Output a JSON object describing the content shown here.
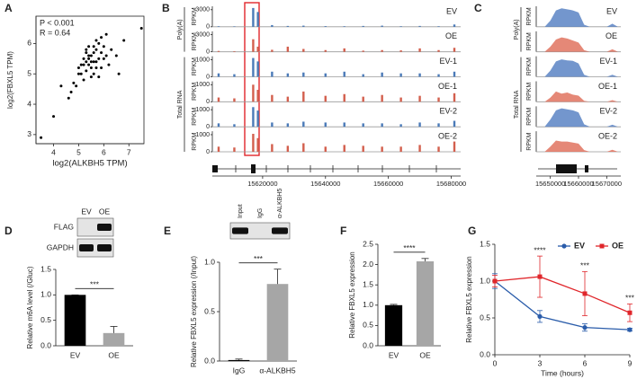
{
  "chart_data": [
    {
      "type": "scatter",
      "panel": "A",
      "annotations": [
        "P < 0.001",
        "R = 0.64"
      ],
      "x_label": "log2(ALKBH5 TPM)",
      "y_label": "log2(FBXL5 TPM)",
      "color": "#000000",
      "x": [
        5.2,
        5.4,
        5.5,
        5.6,
        5.3,
        5.7,
        5.8,
        5.1,
        5.9,
        6.0,
        5.5,
        5.6,
        5.4,
        5.2,
        5.0,
        4.9,
        5.3,
        5.7,
        6.1,
        6.2,
        5.8,
        5.6,
        5.5,
        4.8,
        4.7,
        5.9,
        6.3,
        6.5,
        5.4,
        5.1,
        5.6,
        5.7,
        5.3,
        5.2,
        5.8,
        6.0,
        4.6,
        5.5,
        5.9,
        6.8,
        7.5,
        3.5,
        4.0,
        4.3,
        6.6,
        5.0,
        5.4,
        5.7,
        5.3,
        6.1
      ],
      "y": [
        5.3,
        5.5,
        5.6,
        5.4,
        5.1,
        5.8,
        5.5,
        5.0,
        5.7,
        5.9,
        5.2,
        5.7,
        5.6,
        4.8,
        5.0,
        4.6,
        5.4,
        5.2,
        5.6,
        5.3,
        6.0,
        5.9,
        5.4,
        4.7,
        4.4,
        5.2,
        5.8,
        5.6,
        5.9,
        5.3,
        5.0,
        6.1,
        5.7,
        5.5,
        4.9,
        5.5,
        4.2,
        4.9,
        6.2,
        6.1,
        6.5,
        2.9,
        3.6,
        4.6,
        5.0,
        5.2,
        5.3,
        5.4,
        5.8,
        6.3
      ],
      "xlim": [
        3.3,
        7.6
      ],
      "ylim": [
        2.7,
        6.9
      ],
      "xticks": [
        4,
        5,
        6,
        7
      ],
      "yticks": [
        3,
        4,
        5,
        6
      ]
    },
    {
      "type": "peaks",
      "panel": "B",
      "group_labels": [
        "Poly(A)",
        "Total RNA"
      ],
      "y_label": "RPKM",
      "x": [
        15606000,
        15611000,
        15617000,
        15618500,
        15623000,
        15628000,
        15633000,
        15640000,
        15646000,
        15652000,
        15658000,
        15664000,
        15670000,
        15676000,
        15681000
      ],
      "xlim": [
        15604000,
        15683000
      ],
      "xticks": [
        15620000,
        15640000,
        15660000,
        15680000
      ],
      "series": [
        {
          "name": "EV",
          "color": "#4a7ab8",
          "ylim": [
            0,
            3600
          ],
          "yticks": [
            0,
            3000
          ],
          "values": [
            100,
            80,
            3300,
            2600,
            300,
            150,
            200,
            120,
            100,
            150,
            200,
            100,
            150,
            100,
            400
          ]
        },
        {
          "name": "OE",
          "color": "#d35f4d",
          "ylim": [
            0,
            3600
          ],
          "yticks": [
            0,
            3000
          ],
          "values": [
            150,
            100,
            2200,
            900,
            350,
            900,
            500,
            300,
            600,
            200,
            300,
            250,
            600,
            300,
            700
          ]
        },
        {
          "name": "EV-1",
          "color": "#4a7ab8",
          "ylim": [
            0,
            1200
          ],
          "yticks": [
            0,
            1000
          ],
          "values": [
            200,
            150,
            1100,
            900,
            300,
            200,
            250,
            200,
            300,
            150,
            250,
            200,
            200,
            150,
            300
          ]
        },
        {
          "name": "OE-1",
          "color": "#d35f4d",
          "ylim": [
            0,
            1200
          ],
          "yticks": [
            0,
            1000
          ],
          "values": [
            250,
            200,
            1000,
            700,
            400,
            300,
            600,
            350,
            450,
            300,
            400,
            250,
            350,
            250,
            500
          ]
        },
        {
          "name": "EV-2",
          "color": "#4a7ab8",
          "ylim": [
            0,
            1200
          ],
          "yticks": [
            0,
            1000
          ],
          "values": [
            200,
            150,
            1150,
            950,
            250,
            200,
            300,
            250,
            250,
            200,
            200,
            150,
            250,
            200,
            350
          ]
        },
        {
          "name": "OE-2",
          "color": "#d35f4d",
          "ylim": [
            0,
            1200
          ],
          "yticks": [
            0,
            1000
          ],
          "values": [
            300,
            250,
            1050,
            800,
            450,
            350,
            500,
            300,
            400,
            350,
            300,
            300,
            400,
            300,
            600
          ]
        }
      ]
    },
    {
      "type": "coverage",
      "panel": "C",
      "group_labels": [
        "Poly(A)",
        "Total RNA"
      ],
      "y_label": "RPKM",
      "x": [
        15646000,
        15648000,
        15650000,
        15652000,
        15654000,
        15656000,
        15658000,
        15660000,
        15662000,
        15664000,
        15666000,
        15668000,
        15670000,
        15672000,
        15674000
      ],
      "xlim": [
        15645000,
        15675000
      ],
      "xticks": [
        15650000,
        15660000,
        15670000
      ],
      "series": [
        {
          "name": "EV",
          "color": "#5b84c4",
          "ylim": [
            0,
            100
          ],
          "values": [
            0,
            0,
            30,
            80,
            90,
            85,
            80,
            70,
            10,
            0,
            0,
            0,
            0,
            15,
            0
          ]
        },
        {
          "name": "OE",
          "color": "#e0735f",
          "ylim": [
            0,
            100
          ],
          "values": [
            0,
            0,
            25,
            60,
            70,
            65,
            55,
            45,
            8,
            0,
            0,
            0,
            0,
            12,
            0
          ]
        },
        {
          "name": "EV-1",
          "color": "#5b84c4",
          "ylim": [
            0,
            100
          ],
          "values": [
            0,
            0,
            30,
            75,
            85,
            80,
            78,
            65,
            10,
            0,
            0,
            0,
            0,
            10,
            0
          ]
        },
        {
          "name": "OE-1",
          "color": "#e0735f",
          "ylim": [
            0,
            100
          ],
          "values": [
            0,
            0,
            20,
            50,
            40,
            45,
            35,
            30,
            5,
            0,
            0,
            0,
            0,
            8,
            0
          ]
        },
        {
          "name": "EV-2",
          "color": "#5b84c4",
          "ylim": [
            0,
            100
          ],
          "values": [
            0,
            0,
            35,
            80,
            90,
            85,
            80,
            70,
            12,
            0,
            0,
            0,
            0,
            10,
            0
          ]
        },
        {
          "name": "OE-2",
          "color": "#e0735f",
          "ylim": [
            0,
            100
          ],
          "values": [
            0,
            0,
            25,
            55,
            50,
            50,
            45,
            40,
            8,
            0,
            0,
            0,
            0,
            10,
            0
          ]
        }
      ]
    },
    {
      "type": "bar",
      "panel": "D",
      "blot": {
        "lanes": [
          "EV",
          "OE"
        ],
        "rows": [
          "FLAG",
          "GAPDH"
        ]
      },
      "y_label": "Relative m6A level (/Gluc)",
      "significance": "***",
      "categories": [
        "EV",
        "OE"
      ],
      "values": [
        1,
        0.25
      ],
      "errors": [
        0,
        0.13
      ],
      "colors": [
        "#000000",
        "#a6a6a6"
      ],
      "ylim": [
        0,
        1.5
      ],
      "yticks": [
        {
          "value": 0,
          "label": "0.0"
        },
        0.5,
        {
          "value": 1,
          "label": "1.0"
        },
        1.5
      ]
    },
    {
      "type": "bar",
      "panel": "E",
      "blot": {
        "lanes": [
          "Input",
          "IgG",
          "α-ALKBH5"
        ],
        "rows": []
      },
      "y_label": "Relative FBXL5 expression (/Input)",
      "significance": "***",
      "categories": [
        "IgG",
        "α-ALKBH5"
      ],
      "values": [
        0.01,
        0.78
      ],
      "errors": [
        0.01,
        0.15
      ],
      "colors": [
        "#000000",
        "#a6a6a6"
      ],
      "ylim": [
        0,
        1
      ],
      "yticks": [
        {
          "value": 0,
          "label": "0.0"
        },
        0.5,
        {
          "value": 1,
          "label": "1.0"
        }
      ]
    },
    {
      "type": "bar",
      "panel": "F",
      "y_label": "Relative FBXL5 expression",
      "significance": "****",
      "categories": [
        "EV",
        "OE"
      ],
      "values": [
        1,
        2.08
      ],
      "errors": [
        0.02,
        0.07
      ],
      "colors": [
        "#000000",
        "#a6a6a6"
      ],
      "ylim": [
        0,
        2.5
      ],
      "yticks": [
        {
          "value": 0,
          "label": "0.0"
        },
        0.5,
        {
          "value": 1,
          "label": "1.0"
        },
        1.5,
        {
          "value": 2,
          "label": "2.0"
        },
        2.5
      ]
    },
    {
      "type": "line",
      "panel": "G",
      "x_label": "Time (hours)",
      "y_label": "Relative FBXL5 expression",
      "legend": "top-right",
      "x": [
        0,
        3,
        6,
        9
      ],
      "xlim": [
        0,
        9
      ],
      "xticks": [
        0,
        3,
        6,
        9
      ],
      "ylim": [
        0,
        1.5
      ],
      "yticks": [
        {
          "value": 0,
          "label": "0.0"
        },
        0.5,
        {
          "value": 1,
          "label": "1.0"
        },
        1.5
      ],
      "series": [
        {
          "name": "EV",
          "color": "#2a5caa",
          "marker": "circle",
          "values": [
            1,
            0.52,
            0.37,
            0.34
          ],
          "errors": [
            0.1,
            0.08,
            0.05,
            0.02
          ]
        },
        {
          "name": "OE",
          "color": "#e0262b",
          "marker": "square",
          "values": [
            1,
            1.06,
            0.83,
            0.57
          ],
          "errors": [
            0.08,
            0.28,
            0.3,
            0.12
          ]
        }
      ],
      "significance": [
        {
          "x": 3,
          "label": "****"
        },
        {
          "x": 6,
          "label": "***"
        },
        {
          "x": 9,
          "label": "***"
        }
      ]
    }
  ]
}
